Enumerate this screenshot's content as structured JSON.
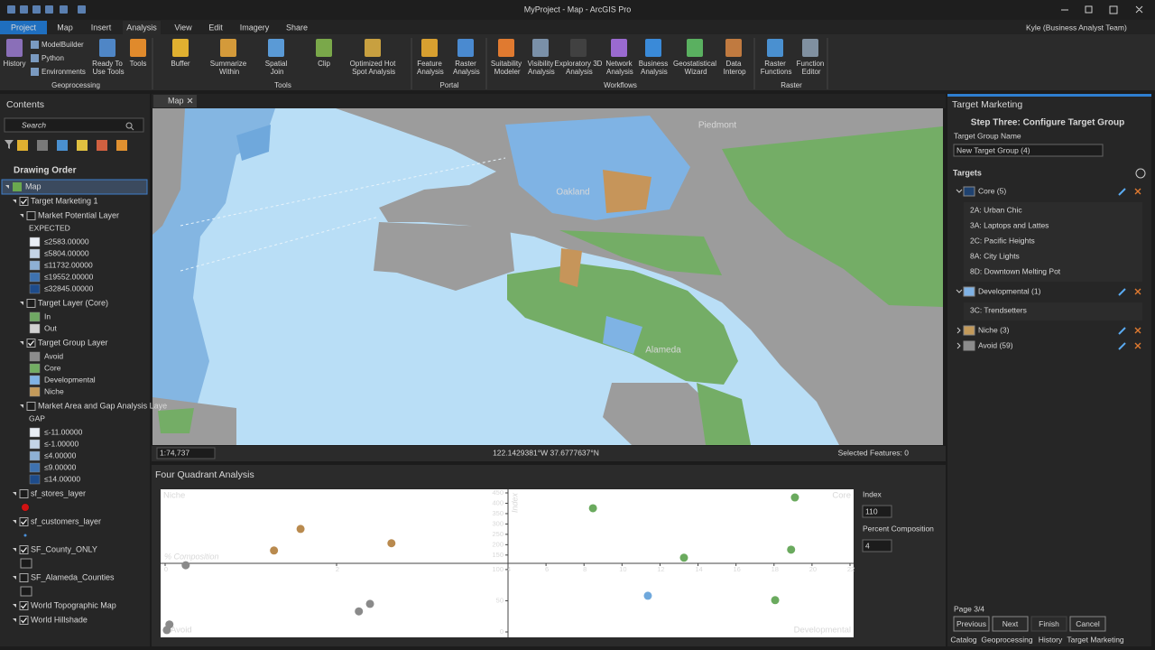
{
  "title_bar": {
    "title": "MyProject - Map - ArcGIS Pro",
    "user": "Kyle (Business Analyst Team)"
  },
  "ribbon": {
    "tabs": [
      "Project",
      "Map",
      "Insert",
      "Analysis",
      "View",
      "Edit",
      "Imagery",
      "Share"
    ],
    "groups": [
      {
        "name": "Geoprocessing",
        "small": [
          "ModelBuilder",
          "Python",
          "Environments"
        ],
        "buttons": [
          "History",
          "Ready To Use Tools",
          "Tools"
        ]
      },
      {
        "name": "Tools",
        "buttons": [
          "Buffer",
          "Summarize Within",
          "Spatial Join",
          "Clip",
          "Optimized Hot Spot Analysis"
        ]
      },
      {
        "name": "Portal",
        "buttons": [
          "Feature Analysis",
          "Raster Analysis"
        ]
      },
      {
        "name": "Workflows",
        "buttons": [
          "Suitability Modeler",
          "Visibility Analysis",
          "Exploratory 3D Analysis",
          "Network Analysis",
          "Business Analysis",
          "Geostatistical Wizard",
          "Data Interop"
        ]
      },
      {
        "name": "Raster",
        "buttons": [
          "Raster Functions",
          "Function Editor"
        ]
      }
    ]
  },
  "contents": {
    "title": "Contents",
    "search": "Search",
    "drawing_order": "Drawing Order",
    "items": [
      {
        "label": "Map",
        "kind": "map",
        "level": 0
      },
      {
        "label": "Target Marketing 1",
        "kind": "layer",
        "level": 1,
        "checked": true
      },
      {
        "label": "Market Potential Layer",
        "kind": "layer",
        "level": 2,
        "checked": false
      },
      {
        "label": "EXPECTED",
        "kind": "heading",
        "level": 3
      },
      {
        "label": "≤2583.00000",
        "kind": "class",
        "level": 3,
        "color": "#e9eef5"
      },
      {
        "label": "≤5804.00000",
        "kind": "class",
        "level": 3,
        "color": "#c4d4e6"
      },
      {
        "label": "≤11732.00000",
        "kind": "class",
        "level": 3,
        "color": "#8eb0d4"
      },
      {
        "label": "≤19552.00000",
        "kind": "class",
        "level": 3,
        "color": "#3e72b0"
      },
      {
        "label": "≤32845.00000",
        "kind": "class",
        "level": 3,
        "color": "#1e4c8b"
      },
      {
        "label": "Target Layer (Core)",
        "kind": "layer",
        "level": 2,
        "checked": false
      },
      {
        "label": "In",
        "kind": "class",
        "level": 3,
        "color": "#6fa863"
      },
      {
        "label": "Out",
        "kind": "class",
        "level": 3,
        "color": "#d2d2d2"
      },
      {
        "label": "Target Group Layer",
        "kind": "layer",
        "level": 2,
        "checked": true
      },
      {
        "label": "Avoid",
        "kind": "class",
        "level": 3,
        "color": "#8c8c8c"
      },
      {
        "label": "Core",
        "kind": "class",
        "level": 3,
        "color": "#72ad63"
      },
      {
        "label": "Developmental",
        "kind": "class",
        "level": 3,
        "color": "#7fb2e5"
      },
      {
        "label": "Niche",
        "kind": "class",
        "level": 3,
        "color": "#c39a5a"
      },
      {
        "label": "Market Area and Gap Analysis Laye",
        "kind": "layer",
        "level": 2,
        "checked": false
      },
      {
        "label": "GAP",
        "kind": "heading",
        "level": 3
      },
      {
        "label": "≤-11.00000",
        "kind": "class",
        "level": 3,
        "color": "#e9eef5"
      },
      {
        "label": "≤-1.00000",
        "kind": "class",
        "level": 3,
        "color": "#c4d4e6"
      },
      {
        "label": "≤4.00000",
        "kind": "class",
        "level": 3,
        "color": "#8eb0d4"
      },
      {
        "label": "≤9.00000",
        "kind": "class",
        "level": 3,
        "color": "#3e72b0"
      },
      {
        "label": "≤14.00000",
        "kind": "class",
        "level": 3,
        "color": "#1e4c8b"
      },
      {
        "label": "sf_stores_layer",
        "kind": "layer",
        "level": 1,
        "checked": false
      },
      {
        "kind": "symbol",
        "level": 2,
        "symbol": "dot",
        "color": "#d01212"
      },
      {
        "label": "sf_customers_layer",
        "kind": "layer",
        "level": 1,
        "checked": true
      },
      {
        "kind": "symbol",
        "level": 2,
        "symbol": "point",
        "color": "#4a8fd8"
      },
      {
        "label": "SF_County_ONLY",
        "kind": "layer",
        "level": 1,
        "checked": true
      },
      {
        "kind": "symbol",
        "level": 2,
        "symbol": "square",
        "color": "#1a1a1a"
      },
      {
        "label": "SF_Alameda_Counties",
        "kind": "layer",
        "level": 1,
        "checked": false
      },
      {
        "kind": "symbol",
        "level": 2,
        "symbol": "square",
        "color": "#1a1a1a"
      },
      {
        "label": "World Topographic Map",
        "kind": "layer",
        "level": 1,
        "checked": true
      },
      {
        "label": "World Hillshade",
        "kind": "layer",
        "level": 1,
        "checked": true
      }
    ]
  },
  "map": {
    "tab": "Map",
    "places": [
      "Oakland",
      "Alameda",
      "Piedmont"
    ],
    "scale": "1:74,737",
    "coordinates": "122.1429381°W 37.6777637°N",
    "selected": "Selected Features: 0"
  },
  "chart_pane": {
    "title": "Four Quadrant Analysis",
    "index_label": "Index",
    "composition_label": "Percent Composition"
  },
  "chart_data": {
    "type": "scatter",
    "x_label": "% Composition",
    "y_label": "Index",
    "index": 110,
    "composition": 4,
    "xlim": [
      0,
      22
    ],
    "xticks": [
      0,
      2,
      4,
      6,
      8,
      10,
      12,
      14,
      16,
      18,
      20,
      22
    ],
    "ylim": [
      0,
      450
    ],
    "yticks": [
      0,
      50,
      100,
      150,
      200,
      250,
      300,
      350,
      400,
      450
    ],
    "series": [
      {
        "name": "Niche",
        "color": "#b98a4e",
        "x": [
          1.58,
          1.27,
          2.64
        ],
        "values": [
          276,
          172,
          207
        ]
      },
      {
        "name": "Core",
        "color": "#6aaa5e",
        "x": [
          8.47,
          19.1,
          13.26,
          18.9,
          18.06
        ],
        "values": [
          376,
          428,
          137,
          176,
          51
        ]
      },
      {
        "name": "Developmental",
        "color": "#6fa8dc",
        "x": [
          11.36
        ],
        "values": [
          58
        ]
      },
      {
        "name": "Avoid",
        "color": "#8a8a8a",
        "x": [
          0.24,
          0.05,
          0.02,
          2.39,
          2.26
        ],
        "values": [
          107,
          12,
          3,
          45,
          33
        ]
      }
    ]
  },
  "target_pane": {
    "title": "Target Marketing",
    "step": "Step Three: Configure Target Group",
    "name_label": "Target Group Name",
    "name_value": "New Target Group (4)",
    "targets": "Targets",
    "groups": [
      {
        "label": "Core (5)",
        "color": "#1f4270",
        "items": [
          "2A: Urban Chic",
          "3A: Laptops and Lattes",
          "2C: Pacific Heights",
          "8A: City Lights",
          "8D: Downtown Melting Pot"
        ]
      },
      {
        "label": "Developmental (1)",
        "color": "#7fb2e5",
        "items": [
          "3C: Trendsetters"
        ]
      },
      {
        "label": "Niche (3)",
        "color": "#c39a5a",
        "items": []
      },
      {
        "label": "Avoid (59)",
        "color": "#8c8c8c",
        "items": []
      }
    ],
    "page": "Page 3/4",
    "buttons": [
      "Previous",
      "Next",
      "Finish",
      "Cancel"
    ],
    "tabs": [
      "Catalog",
      "Geoprocessing",
      "History",
      "Target Marketing"
    ]
  }
}
